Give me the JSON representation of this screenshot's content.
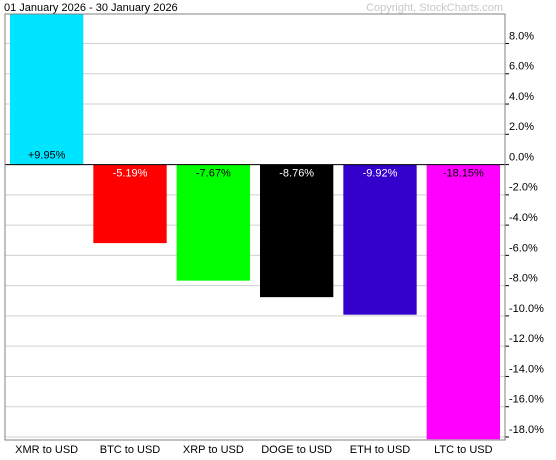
{
  "chart_data": {
    "type": "bar",
    "title": "01 January 2026 - 30 January 2026",
    "copyright": "Copyright, StockCharts.com",
    "categories": [
      "XMR to USD",
      "BTC to USD",
      "XRP to USD",
      "DOGE to USD",
      "ETH to USD",
      "LTC to USD"
    ],
    "values": [
      9.95,
      -5.19,
      -7.67,
      -8.76,
      -9.92,
      -18.15
    ],
    "value_labels": [
      "+9.95%",
      "-5.19%",
      "-7.67%",
      "-8.76%",
      "-9.92%",
      "-18.15%"
    ],
    "colors": [
      "#00e5ff",
      "#ff0000",
      "#00ff00",
      "#000000",
      "#3300cc",
      "#ff00ff"
    ],
    "ylim": [
      -18.2,
      9.95
    ],
    "yticks": [
      {
        "value": 8,
        "label": "8.0%"
      },
      {
        "value": 6,
        "label": "6.0%"
      },
      {
        "value": 4,
        "label": "4.0%"
      },
      {
        "value": 2,
        "label": "2.0%"
      },
      {
        "value": 0,
        "label": "0.0%"
      },
      {
        "value": -2,
        "label": "-2.0%"
      },
      {
        "value": -4,
        "label": "-4.0%"
      },
      {
        "value": -6,
        "label": "-6.0%"
      },
      {
        "value": -8,
        "label": "-8.0%"
      },
      {
        "value": -10,
        "label": "-10.0%"
      },
      {
        "value": -12,
        "label": "-12.0%"
      },
      {
        "value": -14,
        "label": "-14.0%"
      },
      {
        "value": -16,
        "label": "-16.0%"
      },
      {
        "value": -18,
        "label": "-18.0%"
      }
    ],
    "grid": true
  }
}
